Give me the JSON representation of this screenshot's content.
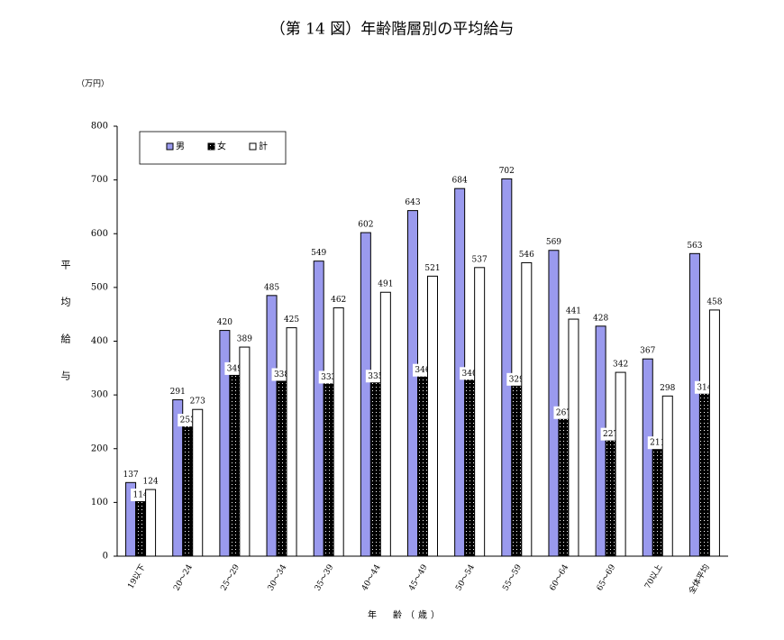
{
  "chart_data": {
    "type": "bar",
    "title": "（第 14 図）年齢階層別の平均給与",
    "y_unit": "（万円）",
    "y_label": "平均給与",
    "x_label": "年　齢（歳）",
    "categories": [
      "19以下",
      "20～24",
      "25～29",
      "30～34",
      "35～39",
      "40～44",
      "45～49",
      "50～54",
      "55～59",
      "60～64",
      "65～69",
      "70以上",
      "全体平均"
    ],
    "series": [
      {
        "name": "男",
        "color": "#9a9aee",
        "values": [
          137,
          291,
          420,
          485,
          549,
          602,
          643,
          684,
          702,
          569,
          428,
          367,
          563
        ]
      },
      {
        "name": "女",
        "color": "#000000",
        "values": [
          114,
          253,
          349,
          338,
          333,
          335,
          346,
          340,
          329,
          267,
          227,
          211,
          314
        ]
      },
      {
        "name": "計",
        "color": "#ffffff",
        "values": [
          124,
          273,
          389,
          425,
          462,
          491,
          521,
          537,
          546,
          441,
          342,
          298,
          458
        ]
      }
    ],
    "ylim": [
      0,
      800
    ],
    "yticks": [
      0,
      100,
      200,
      300,
      400,
      500,
      600,
      700,
      800
    ]
  }
}
